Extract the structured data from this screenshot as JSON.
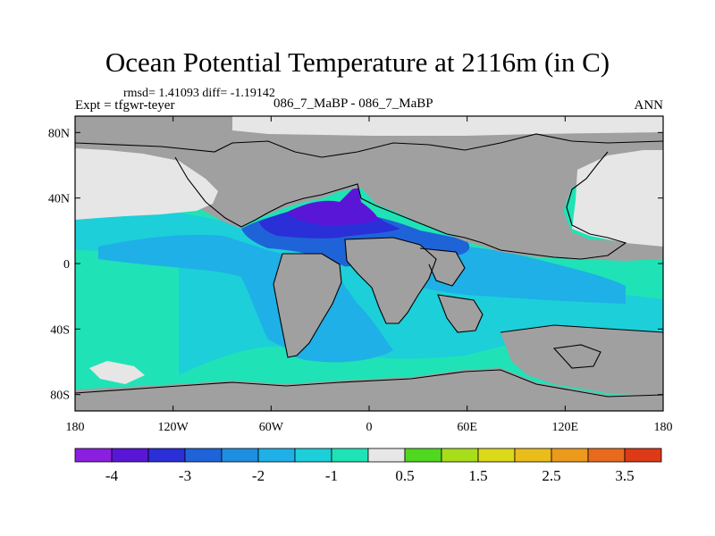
{
  "title": "Ocean Potential Temperature at 2116m (in C)",
  "stats_text": "rmsd= 1.41093 diff= -1.19142",
  "expt_label": "Expt = tfgwr-teyer",
  "case_label": "086_7_MaBP - 086_7_MaBP",
  "season_label": "ANN",
  "chart_data": {
    "type": "heatmap",
    "projection": "cylindrical-equidistant",
    "x_ticks": [
      "180",
      "120W",
      "60W",
      "0",
      "60E",
      "120E",
      "180"
    ],
    "x_tick_values": [
      -180,
      -120,
      -60,
      0,
      60,
      120,
      180
    ],
    "y_ticks": [
      "80N",
      "40N",
      "0",
      "40S",
      "80S"
    ],
    "y_tick_values": [
      80,
      40,
      0,
      -40,
      -80
    ],
    "xlim": [
      -180,
      180
    ],
    "ylim": [
      -90,
      90
    ],
    "colorbar": {
      "labels": [
        "-4",
        "-3",
        "-2",
        "-1",
        "0.5",
        "1.5",
        "2.5",
        "3.5"
      ],
      "label_after_box": [
        1,
        3,
        5,
        7,
        9,
        11,
        13,
        15
      ],
      "colors": [
        "#8b1fe0",
        "#5a16d6",
        "#2a2fd8",
        "#1f63d9",
        "#1d8fe0",
        "#1eb0e6",
        "#1ccfd9",
        "#1fe3b6",
        "#e7e7e7",
        "#4fd81f",
        "#a8dd1a",
        "#dcd81a",
        "#ebbd1a",
        "#eb9a1c",
        "#e86a1c",
        "#dd3a18"
      ]
    },
    "land_color": "#a0a0a0",
    "missing_color": "#e6e6e6"
  }
}
